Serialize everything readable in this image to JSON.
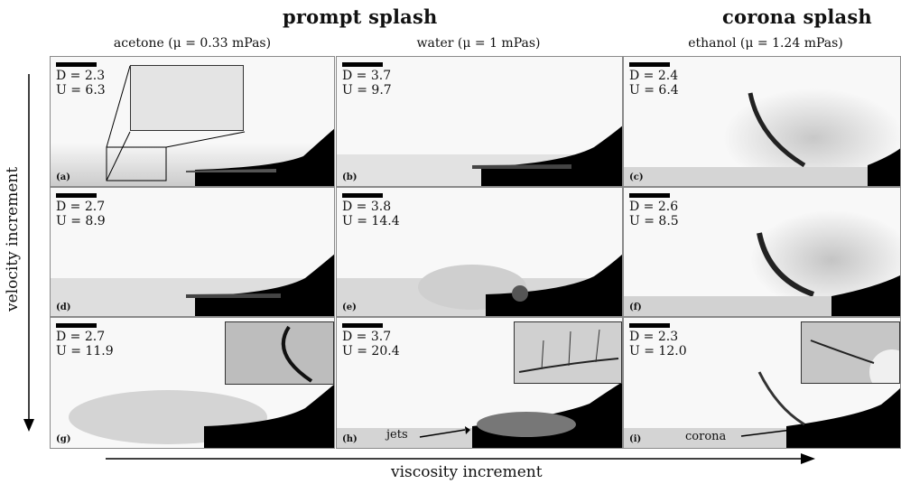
{
  "headings": {
    "prompt": "prompt splash",
    "corona": "corona splash"
  },
  "columns": [
    {
      "label": "acetone (μ = 0.33 mPas)"
    },
    {
      "label": "water (μ = 1 mPas)"
    },
    {
      "label": "ethanol (μ = 1.24 mPas)"
    }
  ],
  "panels": [
    {
      "id": "(a)",
      "D": "D = 2.3",
      "U": "U = 6.3"
    },
    {
      "id": "(b)",
      "D": "D = 3.7",
      "U": "U = 9.7"
    },
    {
      "id": "(c)",
      "D": "D = 2.4",
      "U": "U = 6.4"
    },
    {
      "id": "(d)",
      "D": "D = 2.7",
      "U": "U = 8.9"
    },
    {
      "id": "(e)",
      "D": "D = 3.8",
      "U": "U = 14.4"
    },
    {
      "id": "(f)",
      "D": "D = 2.6",
      "U": "U = 8.5"
    },
    {
      "id": "(g)",
      "D": "D = 2.7",
      "U": "U = 11.9"
    },
    {
      "id": "(h)",
      "D": "D = 3.7",
      "U": "U = 20.4"
    },
    {
      "id": "(i)",
      "D": "D = 2.3",
      "U": "U = 12.0"
    }
  ],
  "annotations": {
    "jets": "jets",
    "corona": "corona"
  },
  "axes": {
    "y": "velocity increment",
    "x": "viscosity increment"
  }
}
